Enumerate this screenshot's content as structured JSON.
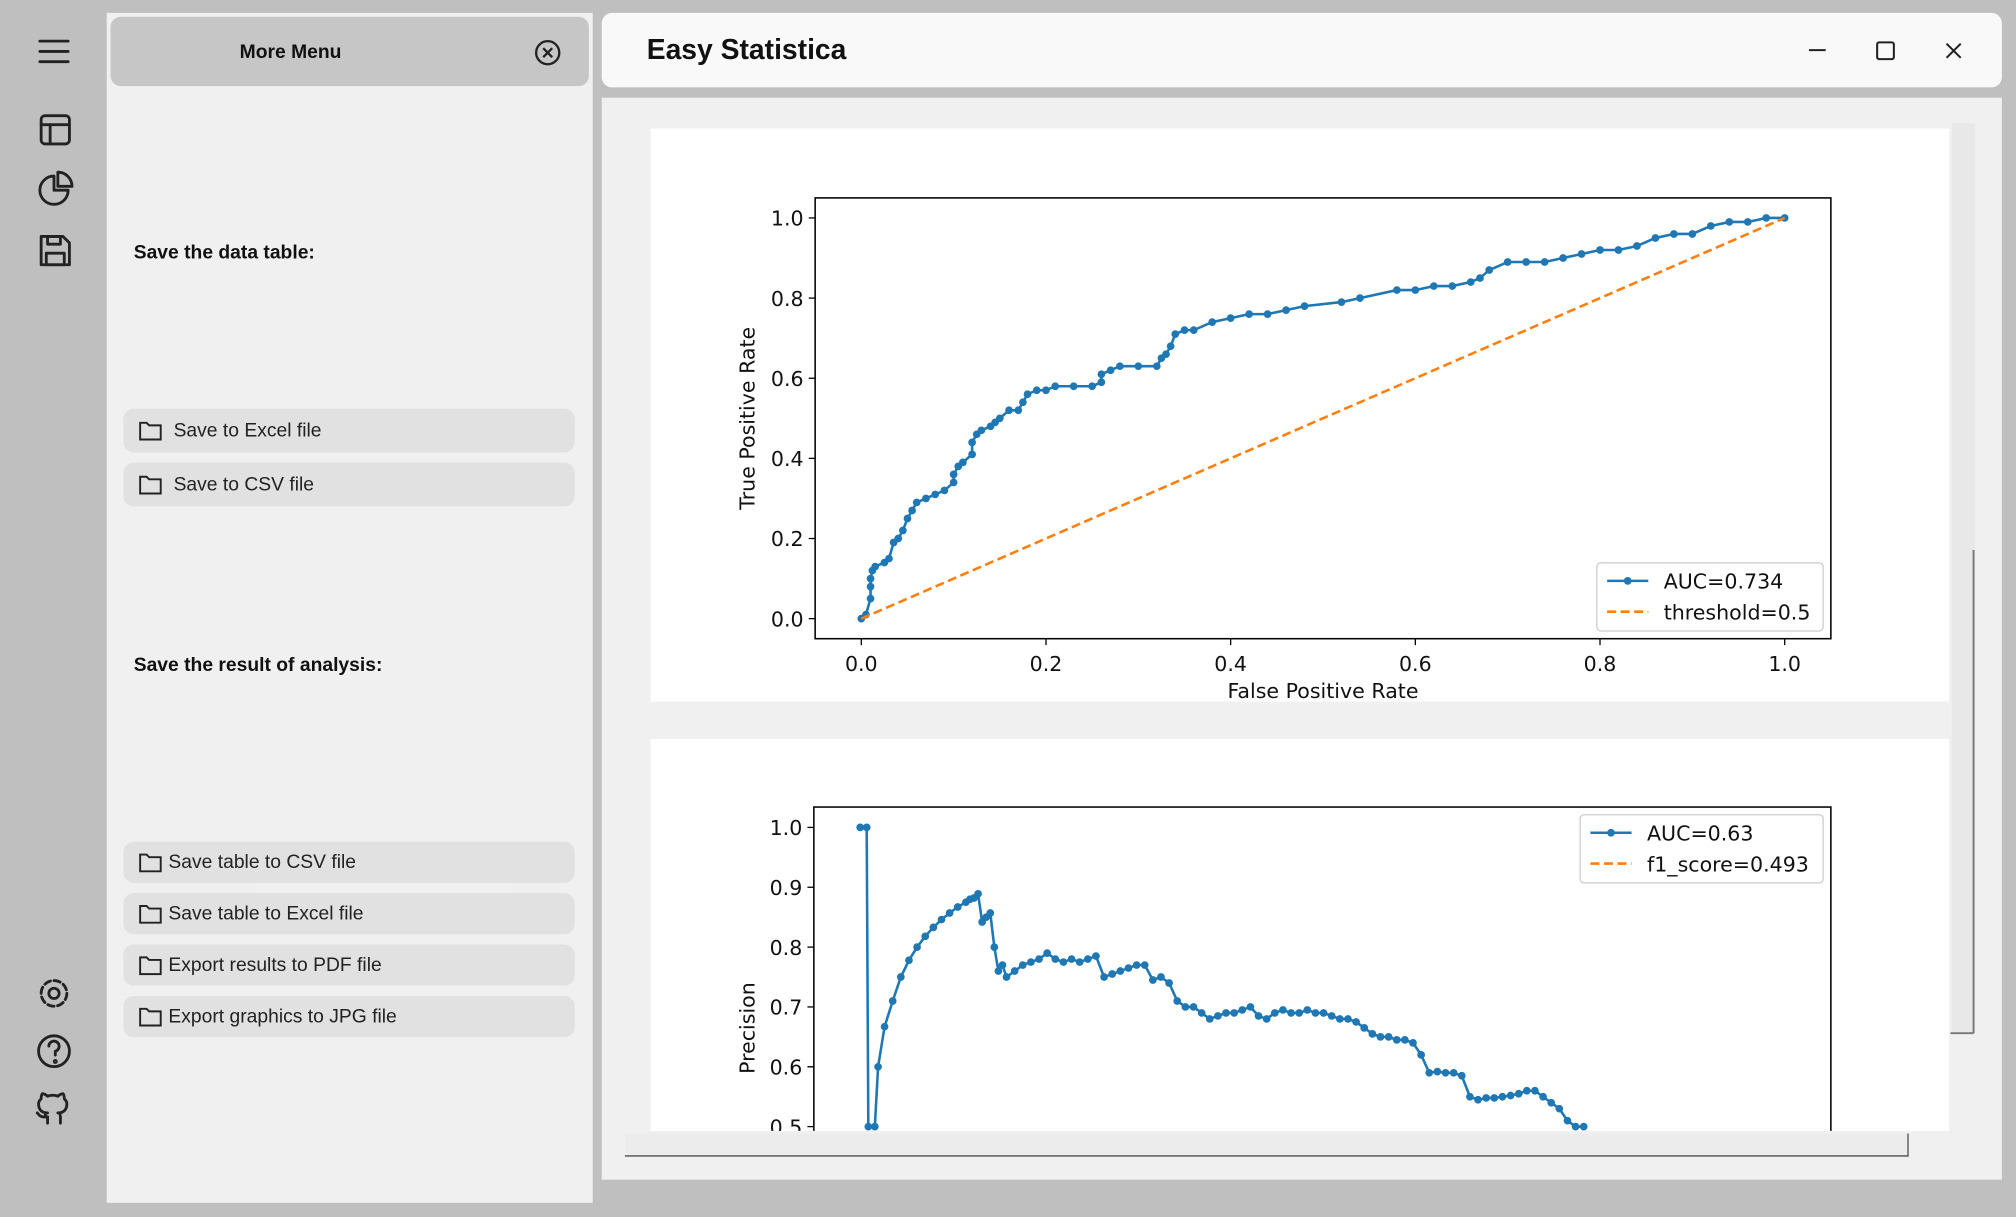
{
  "sidebar_menu": {
    "title": "More Menu",
    "sections": [
      {
        "heading": "Save the data table:",
        "buttons": [
          "Save to Excel file",
          "Save to CSV file"
        ]
      },
      {
        "heading": "Save the result of analysis:",
        "buttons": [
          "Save table to CSV file",
          "Save table to Excel file",
          "Export results to PDF file",
          "Export graphics to JPG file"
        ]
      }
    ]
  },
  "window": {
    "title": "Easy Statistica"
  },
  "chart_data": [
    {
      "type": "line",
      "xlabel": "False Positive Rate",
      "ylabel": "True Positive Rate",
      "xlim": [
        -0.05,
        1.05
      ],
      "ylim": [
        -0.05,
        1.05
      ],
      "xticks": [
        {
          "value": 0,
          "label": "0.0"
        },
        0.2,
        0.4,
        0.6,
        0.8,
        {
          "value": 1,
          "label": "1.0"
        }
      ],
      "yticks": [
        {
          "value": 0,
          "label": "0.0"
        },
        0.2,
        0.4,
        0.6,
        0.8,
        {
          "value": 1,
          "label": "1.0"
        }
      ],
      "legend": "lower right",
      "series": [
        {
          "name": "AUC=0.734",
          "color": "#1f77b4",
          "linestyle": "solid",
          "marker": true,
          "x": [
            0,
            0.005,
            0.01,
            0.01,
            0.01,
            0.012,
            0.015,
            0.025,
            0.03,
            0.035,
            0.04,
            0.045,
            0.05,
            0.055,
            0.06,
            0.07,
            0.08,
            0.09,
            0.1,
            0.1,
            0.105,
            0.11,
            0.12,
            0.12,
            0.125,
            0.13,
            0.14,
            0.145,
            0.15,
            0.16,
            0.17,
            0.175,
            0.18,
            0.19,
            0.2,
            0.21,
            0.23,
            0.25,
            0.26,
            0.26,
            0.27,
            0.28,
            0.3,
            0.32,
            0.325,
            0.33,
            0.335,
            0.34,
            0.35,
            0.36,
            0.38,
            0.4,
            0.42,
            0.44,
            0.46,
            0.48,
            0.52,
            0.54,
            0.58,
            0.6,
            0.62,
            0.64,
            0.66,
            0.67,
            0.68,
            0.7,
            0.72,
            0.74,
            0.76,
            0.78,
            0.8,
            0.82,
            0.84,
            0.86,
            0.88,
            0.9,
            0.92,
            0.94,
            0.96,
            0.98,
            1.0
          ],
          "values": [
            0,
            0.01,
            0.05,
            0.08,
            0.1,
            0.12,
            0.13,
            0.14,
            0.15,
            0.19,
            0.2,
            0.22,
            0.25,
            0.27,
            0.29,
            0.3,
            0.31,
            0.32,
            0.34,
            0.36,
            0.38,
            0.39,
            0.41,
            0.44,
            0.46,
            0.47,
            0.48,
            0.49,
            0.5,
            0.52,
            0.52,
            0.54,
            0.56,
            0.57,
            0.57,
            0.58,
            0.58,
            0.58,
            0.59,
            0.61,
            0.62,
            0.63,
            0.63,
            0.63,
            0.65,
            0.66,
            0.68,
            0.71,
            0.72,
            0.72,
            0.74,
            0.75,
            0.76,
            0.76,
            0.77,
            0.78,
            0.79,
            0.8,
            0.82,
            0.82,
            0.83,
            0.83,
            0.84,
            0.85,
            0.87,
            0.89,
            0.89,
            0.89,
            0.9,
            0.91,
            0.92,
            0.92,
            0.93,
            0.95,
            0.96,
            0.96,
            0.98,
            0.99,
            0.99,
            1.0,
            1.0
          ]
        },
        {
          "name": "threshold=0.5",
          "color": "#ff7f0e",
          "linestyle": "dashed",
          "marker": false,
          "x": [
            0,
            1
          ],
          "values": [
            0,
            1
          ]
        }
      ]
    },
    {
      "type": "line",
      "ylabel": "Precision",
      "xlim": [
        -0.057,
        1.194
      ],
      "ylim": [
        0.45,
        1.034
      ],
      "yticks": [
        0.5,
        0.6,
        0.7,
        0.8,
        0.9,
        {
          "value": 1,
          "label": "1.0"
        }
      ],
      "legend": "upper right",
      "series": [
        {
          "name": "AUC=0.63",
          "color": "#1f77b4",
          "linestyle": "solid",
          "marker": true,
          "x": [
            0,
            0.008,
            0.01,
            0.018,
            0.022,
            0.03,
            0.04,
            0.05,
            0.06,
            0.07,
            0.08,
            0.09,
            0.1,
            0.11,
            0.12,
            0.13,
            0.135,
            0.14,
            0.145,
            0.15,
            0.155,
            0.16,
            0.165,
            0.17,
            0.175,
            0.18,
            0.19,
            0.2,
            0.21,
            0.22,
            0.23,
            0.24,
            0.25,
            0.26,
            0.27,
            0.28,
            0.29,
            0.3,
            0.31,
            0.32,
            0.33,
            0.34,
            0.35,
            0.36,
            0.37,
            0.38,
            0.39,
            0.4,
            0.41,
            0.42,
            0.43,
            0.44,
            0.45,
            0.46,
            0.47,
            0.48,
            0.49,
            0.5,
            0.51,
            0.52,
            0.53,
            0.54,
            0.55,
            0.56,
            0.57,
            0.58,
            0.59,
            0.6,
            0.61,
            0.62,
            0.63,
            0.64,
            0.65,
            0.66,
            0.67,
            0.68,
            0.69,
            0.7,
            0.71,
            0.72,
            0.73,
            0.74,
            0.75,
            0.76,
            0.77,
            0.78,
            0.79,
            0.8,
            0.81,
            0.82,
            0.83,
            0.84,
            0.85,
            0.86,
            0.87,
            0.88,
            0.89
          ],
          "values": [
            1.0,
            1.0,
            0.5,
            0.5,
            0.6,
            0.667,
            0.71,
            0.75,
            0.778,
            0.8,
            0.818,
            0.833,
            0.846,
            0.857,
            0.867,
            0.875,
            0.88,
            0.882,
            0.889,
            0.842,
            0.85,
            0.857,
            0.8,
            0.76,
            0.77,
            0.75,
            0.76,
            0.77,
            0.775,
            0.78,
            0.79,
            0.78,
            0.775,
            0.78,
            0.775,
            0.78,
            0.785,
            0.75,
            0.755,
            0.76,
            0.765,
            0.77,
            0.77,
            0.745,
            0.75,
            0.74,
            0.71,
            0.7,
            0.7,
            0.69,
            0.68,
            0.685,
            0.69,
            0.69,
            0.695,
            0.7,
            0.685,
            0.68,
            0.69,
            0.695,
            0.69,
            0.69,
            0.695,
            0.69,
            0.69,
            0.685,
            0.68,
            0.68,
            0.675,
            0.665,
            0.655,
            0.65,
            0.65,
            0.645,
            0.645,
            0.64,
            0.62,
            0.59,
            0.592,
            0.59,
            0.59,
            0.585,
            0.55,
            0.545,
            0.548,
            0.548,
            0.55,
            0.552,
            0.555,
            0.56,
            0.56,
            0.55,
            0.54,
            0.53,
            0.51,
            0.5,
            0.5
          ]
        },
        {
          "name": "f1_score=0.493",
          "color": "#ff7f0e",
          "linestyle": "dashed",
          "marker": false,
          "x": [],
          "values": []
        }
      ]
    }
  ]
}
